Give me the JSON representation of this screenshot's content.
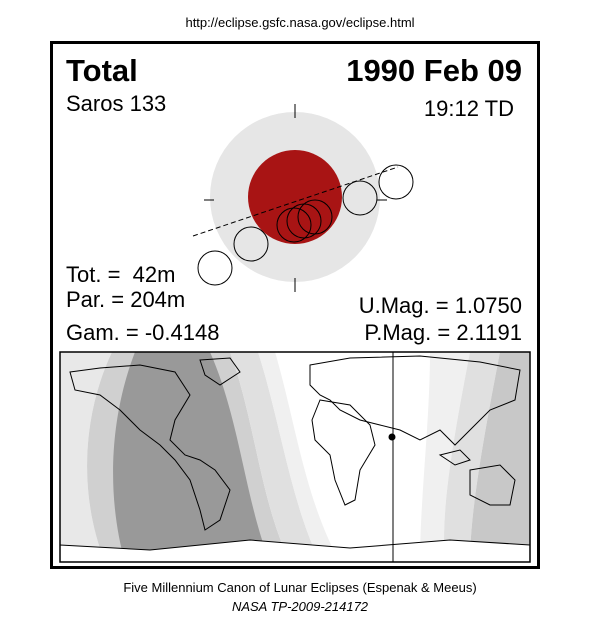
{
  "header": {
    "url": "http://eclipse.gsfc.nasa.gov/eclipse.html"
  },
  "eclipse": {
    "type": "Total",
    "date": "1990 Feb 09",
    "saros": "Saros 133",
    "time": "19:12 TD",
    "total_duration": "Tot. =  42m",
    "partial_duration": "Par. = 204m",
    "gamma": "Gam. = -0.4148",
    "umbral_magnitude": "U.Mag. = 1.0750",
    "penumbral_magnitude": "P.Mag. = 2.1191"
  },
  "footer": {
    "line1": "Five Millennium Canon of Lunar Eclipses (Espenak & Meeus)",
    "line2": "NASA TP-2009-214172"
  }
}
